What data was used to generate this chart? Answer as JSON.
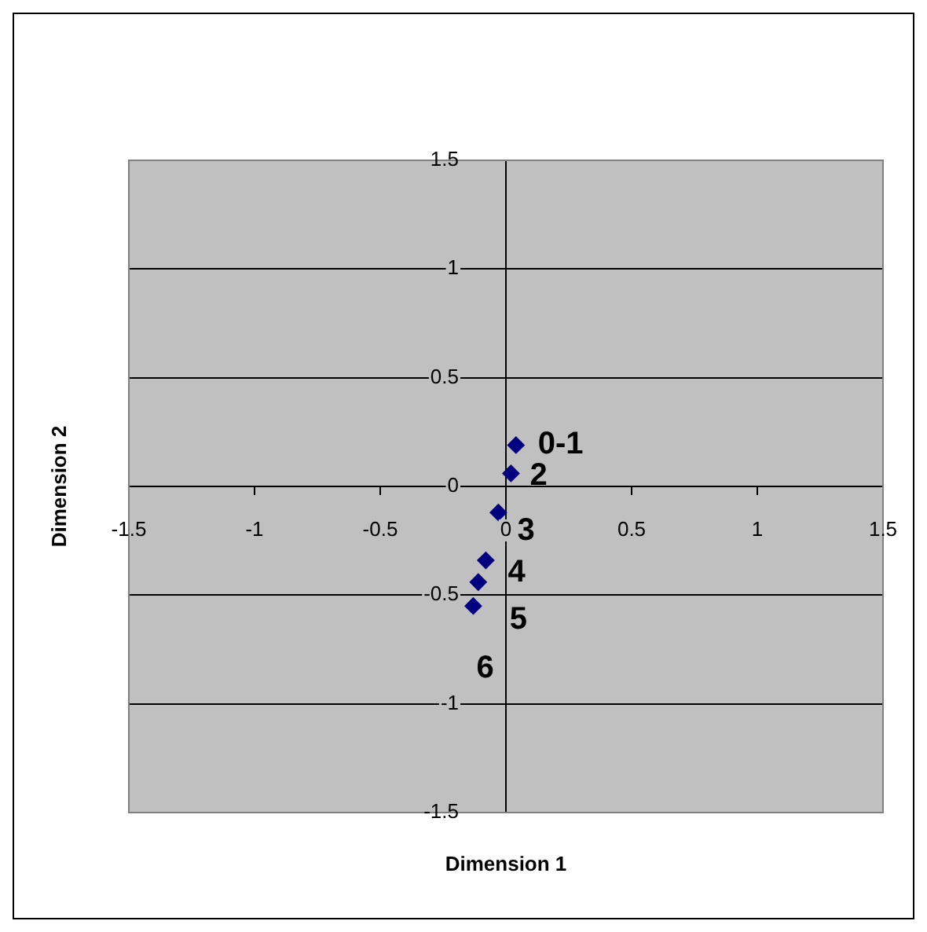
{
  "chart_data": {
    "type": "scatter",
    "xlabel": "Dimension 1",
    "ylabel": "Dimension 2",
    "x": [
      0.04,
      0.02,
      -0.03,
      -0.08,
      -0.11,
      -0.13
    ],
    "series": [
      {
        "color": "#000080",
        "values": [
          0.19,
          0.06,
          -0.12,
          -0.34,
          -0.44,
          -0.55
        ]
      }
    ],
    "xlim": [
      -1.5,
      1.5
    ],
    "xticks": [
      -1.5,
      -1,
      -0.5,
      0,
      0.5,
      1,
      1.5
    ],
    "ylim": [
      -1.5,
      1.5
    ],
    "yticks": [
      -1.5,
      -1,
      -0.5,
      0,
      0.5,
      1,
      1.5
    ],
    "grid": "y",
    "legend": false,
    "marker": "diamond",
    "annotations": [
      {
        "text": "0-1",
        "x": 0.04,
        "y": 0.19
      },
      {
        "text": "2",
        "x": 0.02,
        "y": 0.06
      },
      {
        "text": "3",
        "x": -0.03,
        "y": -0.12
      },
      {
        "text": "4",
        "x": -0.08,
        "y": -0.34
      },
      {
        "text": "5",
        "x": -0.11,
        "y": -0.44
      },
      {
        "text": "6",
        "x": -0.13,
        "y": -0.55
      }
    ]
  }
}
